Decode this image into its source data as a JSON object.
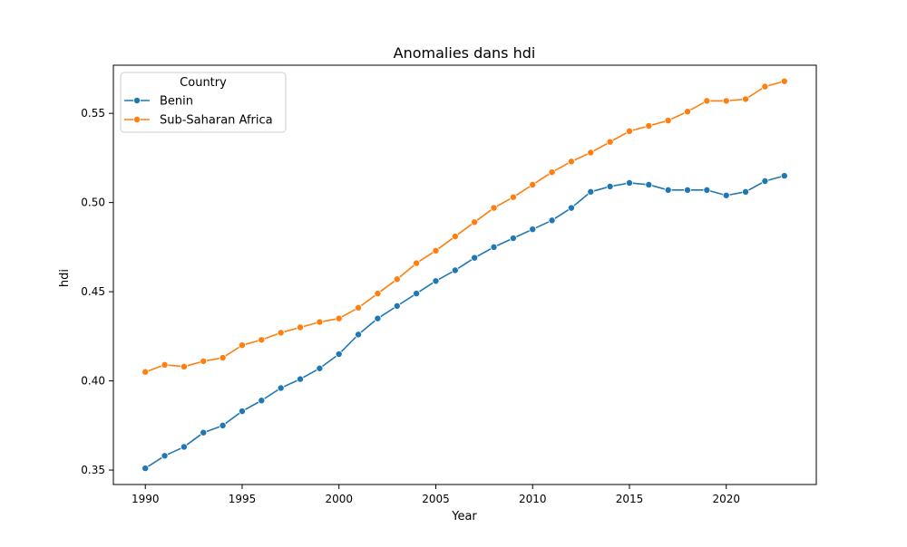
{
  "chart_data": {
    "type": "line",
    "title": "Anomalies dans hdi",
    "xlabel": "Year",
    "ylabel": "hdi",
    "xlim": [
      1988.35,
      2024.65
    ],
    "ylim": [
      0.3419,
      0.577
    ],
    "x_ticks": [
      1990,
      1995,
      2000,
      2005,
      2010,
      2015,
      2020
    ],
    "x_tick_labels": [
      "1990",
      "1995",
      "2000",
      "2005",
      "2010",
      "2015",
      "2020"
    ],
    "y_ticks": [
      0.35,
      0.4,
      0.45,
      0.5,
      0.55
    ],
    "y_tick_labels": [
      "0.35",
      "0.40",
      "0.45",
      "0.50",
      "0.55"
    ],
    "grid": false,
    "legend": {
      "title": "Country",
      "placement": "top-left"
    },
    "x": [
      1990,
      1991,
      1992,
      1993,
      1994,
      1995,
      1996,
      1997,
      1998,
      1999,
      2000,
      2001,
      2002,
      2003,
      2004,
      2005,
      2006,
      2007,
      2008,
      2009,
      2010,
      2011,
      2012,
      2013,
      2014,
      2015,
      2016,
      2017,
      2018,
      2019,
      2020,
      2021,
      2022,
      2023
    ],
    "series": [
      {
        "name": "Benin",
        "color": "#1f77b4",
        "values": [
          0.351,
          0.358,
          0.363,
          0.371,
          0.375,
          0.383,
          0.389,
          0.396,
          0.401,
          0.407,
          0.415,
          0.426,
          0.435,
          0.442,
          0.449,
          0.456,
          0.462,
          0.469,
          0.475,
          0.48,
          0.485,
          0.49,
          0.497,
          0.506,
          0.509,
          0.511,
          0.51,
          0.507,
          0.507,
          0.507,
          0.504,
          0.506,
          0.512,
          0.515
        ]
      },
      {
        "name": "Sub-Saharan Africa",
        "color": "#ff7f0e",
        "values": [
          0.405,
          0.409,
          0.408,
          0.411,
          0.413,
          0.42,
          0.423,
          0.427,
          0.43,
          0.433,
          0.435,
          0.441,
          0.449,
          0.457,
          0.466,
          0.473,
          0.481,
          0.489,
          0.497,
          0.503,
          0.51,
          0.517,
          0.523,
          0.528,
          0.534,
          0.54,
          0.543,
          0.546,
          0.551,
          0.557,
          0.557,
          0.558,
          0.565,
          0.568
        ]
      }
    ]
  }
}
